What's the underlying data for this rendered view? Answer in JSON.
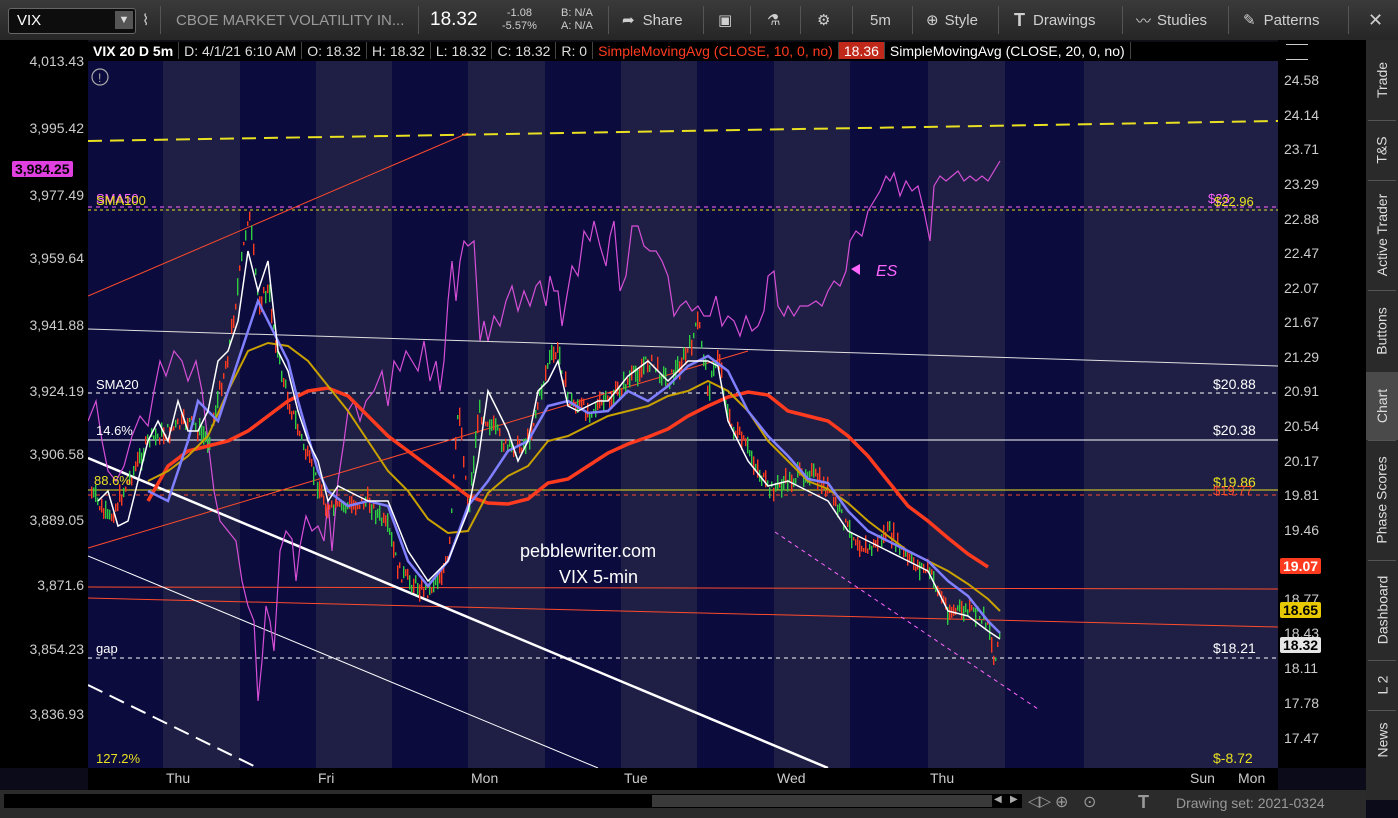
{
  "toolbar": {
    "symbol": "VIX",
    "description": "CBOE MARKET VOLATILITY IN...",
    "last": "18.32",
    "change": "-1.08",
    "change_pct": "-5.57%",
    "bid": "B: N/A",
    "ask": "A: N/A",
    "share": "Share",
    "timeframe": "5m",
    "style": "Style",
    "drawings": "Drawings",
    "studies": "Studies",
    "patterns": "Patterns"
  },
  "infobar": {
    "title": "VIX 20 D 5m",
    "date": "D: 4/1/21 6:10 AM",
    "open": "O: 18.32",
    "high": "H: 18.32",
    "low": "L: 18.32",
    "close": "C: 18.32",
    "range": "R: 0",
    "sma10": "SimpleMovingAvg (CLOSE, 10, 0, no)",
    "sma10_value": "18.36",
    "sma20": "SimpleMovingAvg (CLOSE, 20, 0, no)"
  },
  "left_axis": [
    "4,013.43",
    "3,995.42",
    "3,977.49",
    "3,959.64",
    "3,941.88",
    "3,924.19",
    "3,906.58",
    "3,889.05",
    "3,871.6",
    "3,854.23",
    "3,836.93"
  ],
  "left_tag": "3,984.25",
  "right_axis": [
    "24.58",
    "24.14",
    "23.71",
    "23.29",
    "22.88",
    "22.47",
    "22.07",
    "21.67",
    "21.29",
    "20.91",
    "20.54",
    "20.17",
    "19.81",
    "19.46",
    "18.77",
    "18.43",
    "18.11",
    "17.78",
    "17.47"
  ],
  "right_tags": {
    "sma_red": "19.07",
    "sma_gold": "18.65",
    "last": "18.32"
  },
  "chart_labels": {
    "sma50": "SMA50",
    "sma100": "SMA100",
    "sma20": "SMA20",
    "pct146": "14.6%",
    "pct886": "88.6%",
    "gap": "gap",
    "pct1272": "127.2%",
    "v2296": "$22.96",
    "v23": "$23",
    "v2088": "$20.88",
    "v2038": "$20.38",
    "v1986": "$19.86",
    "v1977": "$19.77",
    "v1821": "$18.21",
    "vneg872": "$-8.72",
    "es": "ES",
    "watermark1": "pebblewriter.com",
    "watermark2": "VIX 5-min"
  },
  "time_axis": [
    "Thu",
    "Fri",
    "Mon",
    "Tue",
    "Wed",
    "Thu",
    "Sun",
    "Mon"
  ],
  "side_tabs": [
    "Trade",
    "T&S",
    "Active Trader",
    "Buttons",
    "Chart",
    "Phase Scores",
    "Dashboard",
    "L 2",
    "News"
  ],
  "status": {
    "drawing_set": "Drawing set: 2021-0324"
  },
  "colors": {
    "sma10": "#ffffff",
    "sma20": "#7f7fff",
    "sma50": "#c8a000",
    "sma100": "#ff3b1f",
    "es": "#d64fd6",
    "yellow_line": "#e8e020",
    "red_line": "#ff4b2b",
    "up_candle": "#2ecc40",
    "down_candle": "#ff3b1f"
  }
}
